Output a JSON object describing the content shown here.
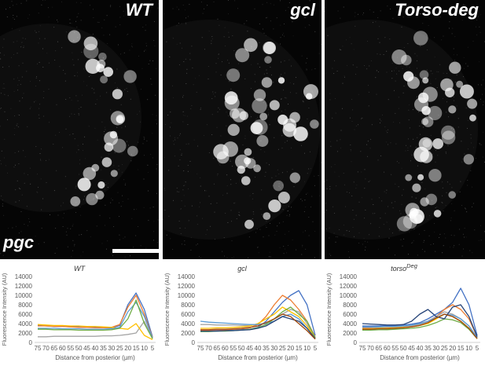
{
  "panels": [
    {
      "title": "WT"
    },
    {
      "title": "gcl"
    },
    {
      "title": "Torso-deg"
    }
  ],
  "corner_label": "pgc",
  "colors": {
    "series": [
      "#4472c4",
      "#ed7d31",
      "#a5a5a5",
      "#ffc000",
      "#5b9bd5",
      "#70ad47",
      "#264478",
      "#9e480e"
    ]
  },
  "chart_data": [
    {
      "type": "line",
      "title": "WT",
      "title_sup": "",
      "xlabel": "Distance from posterior (µm)",
      "ylabel": "Fluorescence Intensity (AU)",
      "x": [
        75,
        70,
        65,
        60,
        55,
        50,
        45,
        40,
        35,
        30,
        25,
        20,
        15,
        10,
        5
      ],
      "ylim": [
        0,
        14000
      ],
      "yticks": [
        0,
        2000,
        4000,
        6000,
        8000,
        10000,
        12000,
        14000
      ],
      "series": [
        {
          "values": [
            3600,
            3500,
            3400,
            3400,
            3300,
            3300,
            3200,
            3200,
            3100,
            3100,
            3600,
            8000,
            10500,
            7000,
            1200
          ]
        },
        {
          "values": [
            3500,
            3500,
            3400,
            3400,
            3300,
            3200,
            3200,
            3100,
            3100,
            3200,
            3800,
            7500,
            10000,
            6000,
            1000
          ]
        },
        {
          "values": [
            1200,
            1200,
            1300,
            1300,
            1300,
            1300,
            1300,
            1300,
            1400,
            1400,
            1500,
            1700,
            2000,
            4500,
            800
          ]
        },
        {
          "values": [
            3800,
            3700,
            3600,
            3600,
            3500,
            3500,
            3400,
            3400,
            3300,
            3200,
            3000,
            2800,
            4000,
            1500,
            600
          ]
        },
        {
          "values": [
            3000,
            3000,
            3000,
            2900,
            2900,
            2900,
            2800,
            2800,
            2800,
            2900,
            3200,
            6500,
            8500,
            5500,
            900
          ]
        },
        {
          "values": [
            2800,
            2800,
            2700,
            2700,
            2700,
            2600,
            2600,
            2600,
            2600,
            2700,
            3000,
            5000,
            9000,
            4000,
            800
          ]
        }
      ]
    },
    {
      "type": "line",
      "title": "gcl",
      "title_sup": "",
      "xlabel": "Distance from posterior (µm)",
      "ylabel": "Fluorescence Intensity (AU)",
      "x": [
        75,
        70,
        65,
        60,
        55,
        50,
        45,
        40,
        35,
        30,
        25,
        20,
        15,
        10,
        5
      ],
      "ylim": [
        0,
        14000
      ],
      "yticks": [
        0,
        2000,
        4000,
        6000,
        8000,
        10000,
        12000,
        14000
      ],
      "series": [
        {
          "values": [
            2500,
            2500,
            2500,
            2600,
            2600,
            2700,
            2800,
            3200,
            4500,
            6500,
            8500,
            10000,
            11000,
            8000,
            1500
          ]
        },
        {
          "values": [
            2600,
            2600,
            2700,
            2700,
            2800,
            2900,
            3100,
            3800,
            5500,
            8000,
            10000,
            9000,
            7000,
            4500,
            1200
          ]
        },
        {
          "values": [
            3800,
            3800,
            3700,
            3700,
            3700,
            3600,
            3600,
            3800,
            4200,
            5000,
            6000,
            7000,
            6500,
            4000,
            1000
          ]
        },
        {
          "values": [
            3000,
            3000,
            3100,
            3100,
            3200,
            3300,
            3500,
            4000,
            5000,
            6000,
            7500,
            6500,
            5500,
            3500,
            900
          ]
        },
        {
          "values": [
            4500,
            4300,
            4200,
            4100,
            4000,
            3900,
            3800,
            3800,
            4000,
            4500,
            5500,
            6000,
            5000,
            3000,
            800
          ]
        },
        {
          "values": [
            2300,
            2300,
            2400,
            2400,
            2500,
            2600,
            2800,
            3100,
            3800,
            5000,
            6500,
            7500,
            6000,
            4500,
            1000
          ]
        },
        {
          "values": [
            2400,
            2400,
            2400,
            2500,
            2500,
            2600,
            2700,
            3000,
            3500,
            4500,
            5500,
            5000,
            4500,
            3000,
            800
          ]
        },
        {
          "values": [
            2700,
            2700,
            2800,
            2800,
            2900,
            3000,
            3200,
            3500,
            4200,
            5000,
            6000,
            5500,
            4000,
            2500,
            700
          ]
        }
      ]
    },
    {
      "type": "line",
      "title": "torso",
      "title_sup": "Deg",
      "xlabel": "Distance from posterior (µm)",
      "ylabel": "Fluorescence Intensity (AU)",
      "x": [
        75,
        70,
        65,
        60,
        55,
        50,
        45,
        40,
        35,
        30,
        25,
        20,
        15,
        10,
        5
      ],
      "ylim": [
        0,
        14000
      ],
      "yticks": [
        0,
        2000,
        4000,
        6000,
        8000,
        10000,
        12000,
        14000
      ],
      "series": [
        {
          "values": [
            3500,
            3500,
            3500,
            3600,
            3600,
            3700,
            3900,
            4200,
            5000,
            6000,
            7000,
            8500,
            11500,
            8000,
            1500
          ]
        },
        {
          "values": [
            3200,
            3200,
            3300,
            3300,
            3400,
            3500,
            3600,
            4000,
            4500,
            5500,
            7000,
            8000,
            7000,
            5000,
            1200
          ]
        },
        {
          "values": [
            3000,
            3000,
            3100,
            3100,
            3200,
            3300,
            3500,
            3800,
            4500,
            5500,
            6500,
            6000,
            5000,
            3500,
            1000
          ]
        },
        {
          "values": [
            2900,
            2900,
            3000,
            3000,
            3100,
            3200,
            3300,
            3600,
            4000,
            5000,
            6000,
            5500,
            4500,
            3000,
            900
          ]
        },
        {
          "values": [
            3300,
            3300,
            3300,
            3400,
            3400,
            3500,
            3700,
            4000,
            4500,
            5200,
            6000,
            5800,
            5000,
            3500,
            1000
          ]
        },
        {
          "values": [
            2600,
            2600,
            2700,
            2700,
            2800,
            2900,
            3000,
            3200,
            3600,
            4200,
            5000,
            4800,
            4200,
            2800,
            800
          ]
        },
        {
          "values": [
            4000,
            3900,
            3800,
            3700,
            3700,
            3800,
            4500,
            6000,
            7000,
            5500,
            5000,
            7500,
            8000,
            5500,
            1200
          ]
        },
        {
          "values": [
            2800,
            2800,
            2900,
            2900,
            3000,
            3100,
            3300,
            3600,
            4200,
            5200,
            6000,
            5500,
            4500,
            3000,
            800
          ]
        }
      ]
    }
  ]
}
